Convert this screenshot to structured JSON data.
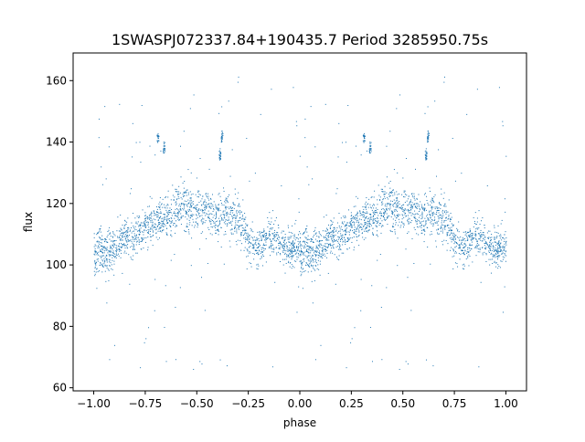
{
  "chart_data": {
    "type": "scatter",
    "title": "1SWASPJ072337.84+190435.7 Period 3285950.75s",
    "xlabel": "phase",
    "ylabel": "flux",
    "xlim": [
      -1.1,
      1.1
    ],
    "ylim": [
      59,
      169
    ],
    "grid": false,
    "legend": "none",
    "color": "#1f77b4",
    "x_ticks": [
      -1.0,
      -0.75,
      -0.5,
      -0.25,
      0.0,
      0.25,
      0.5,
      0.75,
      1.0
    ],
    "x_tick_labels": [
      "−1.00",
      "−0.75",
      "−0.50",
      "−0.25",
      "0.00",
      "0.25",
      "0.50",
      "0.75",
      "1.00"
    ],
    "y_ticks": [
      60,
      80,
      100,
      120,
      140,
      160
    ],
    "y_tick_labels": [
      "60",
      "80",
      "100",
      "120",
      "140",
      "160"
    ],
    "envelope": {
      "phase": [
        0.0,
        0.03,
        0.06,
        0.09,
        0.12,
        0.15,
        0.18,
        0.21,
        0.24,
        0.27,
        0.3,
        0.33,
        0.36,
        0.39,
        0.42,
        0.45,
        0.48,
        0.51,
        0.54,
        0.57,
        0.6,
        0.63,
        0.66,
        0.69,
        0.72,
        0.75,
        0.78,
        0.81,
        0.84,
        0.87,
        0.9,
        0.93,
        0.96,
        0.99
      ],
      "median_flux": [
        104,
        106,
        103,
        105,
        107,
        110,
        108,
        110,
        112,
        113,
        114,
        115,
        116,
        118,
        120,
        119,
        118,
        117,
        118,
        116,
        115,
        117,
        116,
        115,
        114,
        108,
        106,
        107,
        109,
        110,
        108,
        106,
        105,
        106
      ],
      "spread": [
        9,
        9,
        9,
        8,
        8,
        8,
        9,
        8,
        8,
        8,
        8,
        9,
        9,
        9,
        10,
        9,
        9,
        9,
        9,
        9,
        9,
        9,
        9,
        9,
        9,
        9,
        8,
        8,
        8,
        8,
        8,
        8,
        8,
        8
      ]
    },
    "clumps": [
      {
        "phase": 0.31,
        "flux": 142
      },
      {
        "phase": 0.34,
        "flux": 138
      },
      {
        "phase": 0.61,
        "flux": 136
      },
      {
        "phase": 0.62,
        "flux": 142
      }
    ]
  }
}
